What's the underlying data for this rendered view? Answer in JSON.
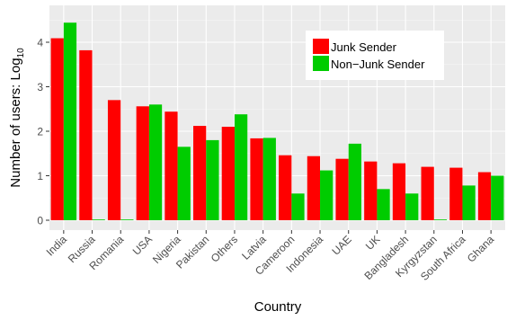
{
  "chart_data": {
    "type": "bar",
    "xlabel": "Country",
    "ylabel_main": "Number of users: Log",
    "ylabel_sub": "10",
    "ylim": [
      0,
      4.55
    ],
    "yticks": [
      0,
      1,
      2,
      3,
      4
    ],
    "grid": true,
    "legend_position": "top-right",
    "categories": [
      "India",
      "Russia",
      "Romania",
      "USA",
      "Nigeria",
      "Pakistan",
      "Others",
      "Latvia",
      "Cameroon",
      "Indonesia",
      "UAE",
      "UK",
      "Bangladesh",
      "Kyrgyzstan",
      "South Africa",
      "Ghana"
    ],
    "series": [
      {
        "name": "Junk Sender",
        "color": "#ff0000",
        "values": [
          4.09,
          3.82,
          2.7,
          2.56,
          2.44,
          2.12,
          2.1,
          1.84,
          1.46,
          1.44,
          1.38,
          1.32,
          1.28,
          1.2,
          1.18,
          1.08
        ]
      },
      {
        "name": "Non−Junk Sender",
        "color": "#00cc00",
        "values": [
          4.44,
          0.0,
          0.0,
          2.6,
          1.65,
          1.8,
          2.38,
          1.85,
          0.6,
          1.12,
          1.72,
          0.7,
          0.6,
          0.0,
          0.78,
          1.0
        ]
      }
    ]
  }
}
